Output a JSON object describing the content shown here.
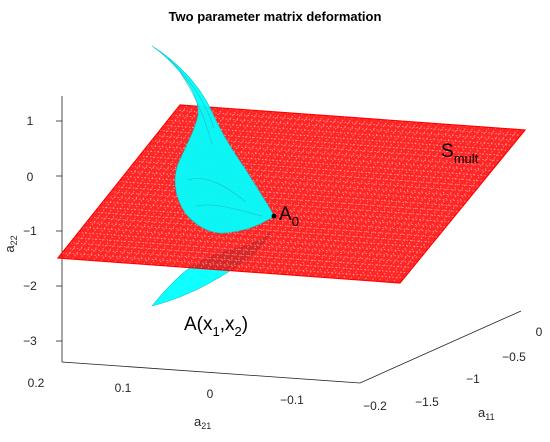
{
  "chart_data": {
    "type": "surface3d",
    "title": "Two parameter matrix deformation",
    "axes": {
      "x": {
        "label_main": "a",
        "label_sub": "21",
        "ticks": [
          "0.2",
          "0.1",
          "0",
          "−0.1",
          "−0.2"
        ],
        "range": [
          0.2,
          -0.2
        ]
      },
      "y": {
        "label_main": "a",
        "label_sub": "11",
        "ticks": [
          "0",
          "−0.5",
          "−1",
          "−1.5"
        ],
        "range": [
          0,
          -1.5
        ]
      },
      "z": {
        "label_main": "a",
        "label_sub": "22",
        "ticks": [
          "1",
          "0",
          "−1",
          "−2",
          "−3"
        ],
        "range": [
          -3,
          1.3
        ]
      }
    },
    "grid": true,
    "series": [
      {
        "name": "S_mult",
        "kind": "plane",
        "color": "#ff0000"
      },
      {
        "name": "A(x1,x2)",
        "kind": "curved surface",
        "color": "#00ffff"
      }
    ],
    "annotations": {
      "smult_main": "S",
      "smult_sub": "mult",
      "a0_main": "A",
      "a0_sub": "0",
      "ax_main": "A(x",
      "ax_sub1": "1",
      "ax_mid": ",x",
      "ax_sub2": "2",
      "ax_end": ")"
    }
  }
}
